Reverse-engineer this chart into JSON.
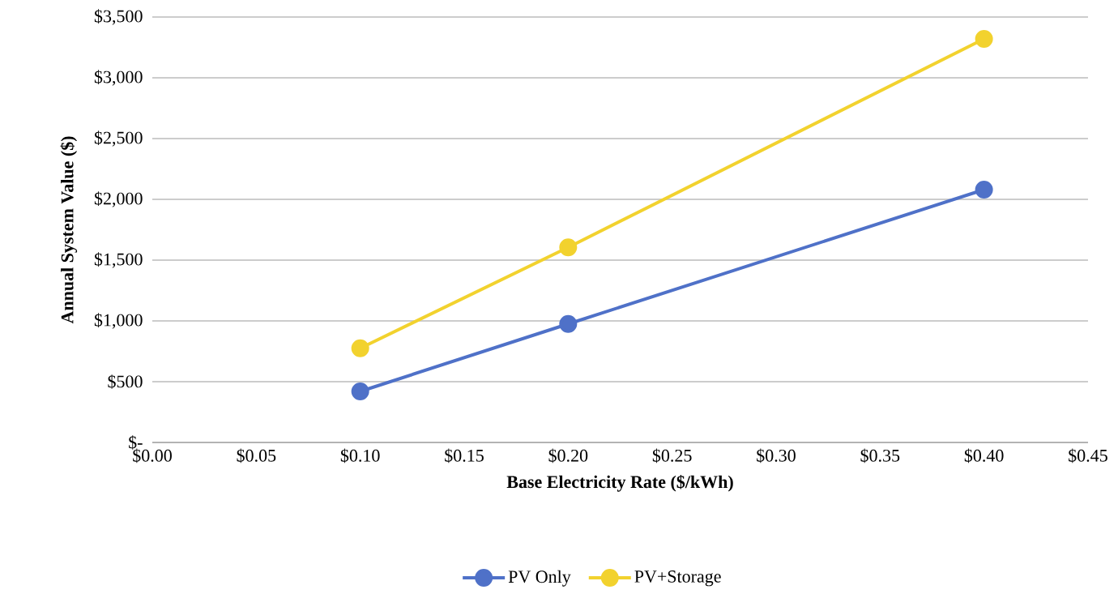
{
  "chart_data": {
    "type": "line",
    "xlabel": "Base Electricity Rate ($/kWh)",
    "ylabel": "Annual System Value ($)",
    "x": [
      0.1,
      0.2,
      0.4
    ],
    "series": [
      {
        "name": "PV Only",
        "color": "#4f71c8",
        "values": [
          420,
          975,
          2080
        ]
      },
      {
        "name": "PV+Storage",
        "color": "#f2d22e",
        "values": [
          775,
          1605,
          3320
        ]
      }
    ],
    "xlim": [
      0,
      0.45
    ],
    "xticks": [
      {
        "value": 0,
        "label": "$0.00"
      },
      {
        "value": 0.05,
        "label": "$0.05"
      },
      {
        "value": 0.1,
        "label": "$0.10"
      },
      {
        "value": 0.15,
        "label": "$0.15"
      },
      {
        "value": 0.2,
        "label": "$0.20"
      },
      {
        "value": 0.25,
        "label": "$0.25"
      },
      {
        "value": 0.3,
        "label": "$0.30"
      },
      {
        "value": 0.35,
        "label": "$0.35"
      },
      {
        "value": 0.4,
        "label": "$0.40"
      },
      {
        "value": 0.45,
        "label": "$0.45"
      }
    ],
    "ylim": [
      0,
      3500
    ],
    "yticks": [
      {
        "value": 0,
        "label": "$-"
      },
      {
        "value": 500,
        "label": "$500"
      },
      {
        "value": 1000,
        "label": "$1,000"
      },
      {
        "value": 1500,
        "label": "$1,500"
      },
      {
        "value": 2000,
        "label": "$2,000"
      },
      {
        "value": 2500,
        "label": "$2,500"
      },
      {
        "value": 3000,
        "label": "$3,000"
      },
      {
        "value": 3500,
        "label": "$3,500"
      }
    ],
    "grid": "y",
    "legend": "bottom",
    "marker": "circle",
    "line_style": "solid"
  }
}
